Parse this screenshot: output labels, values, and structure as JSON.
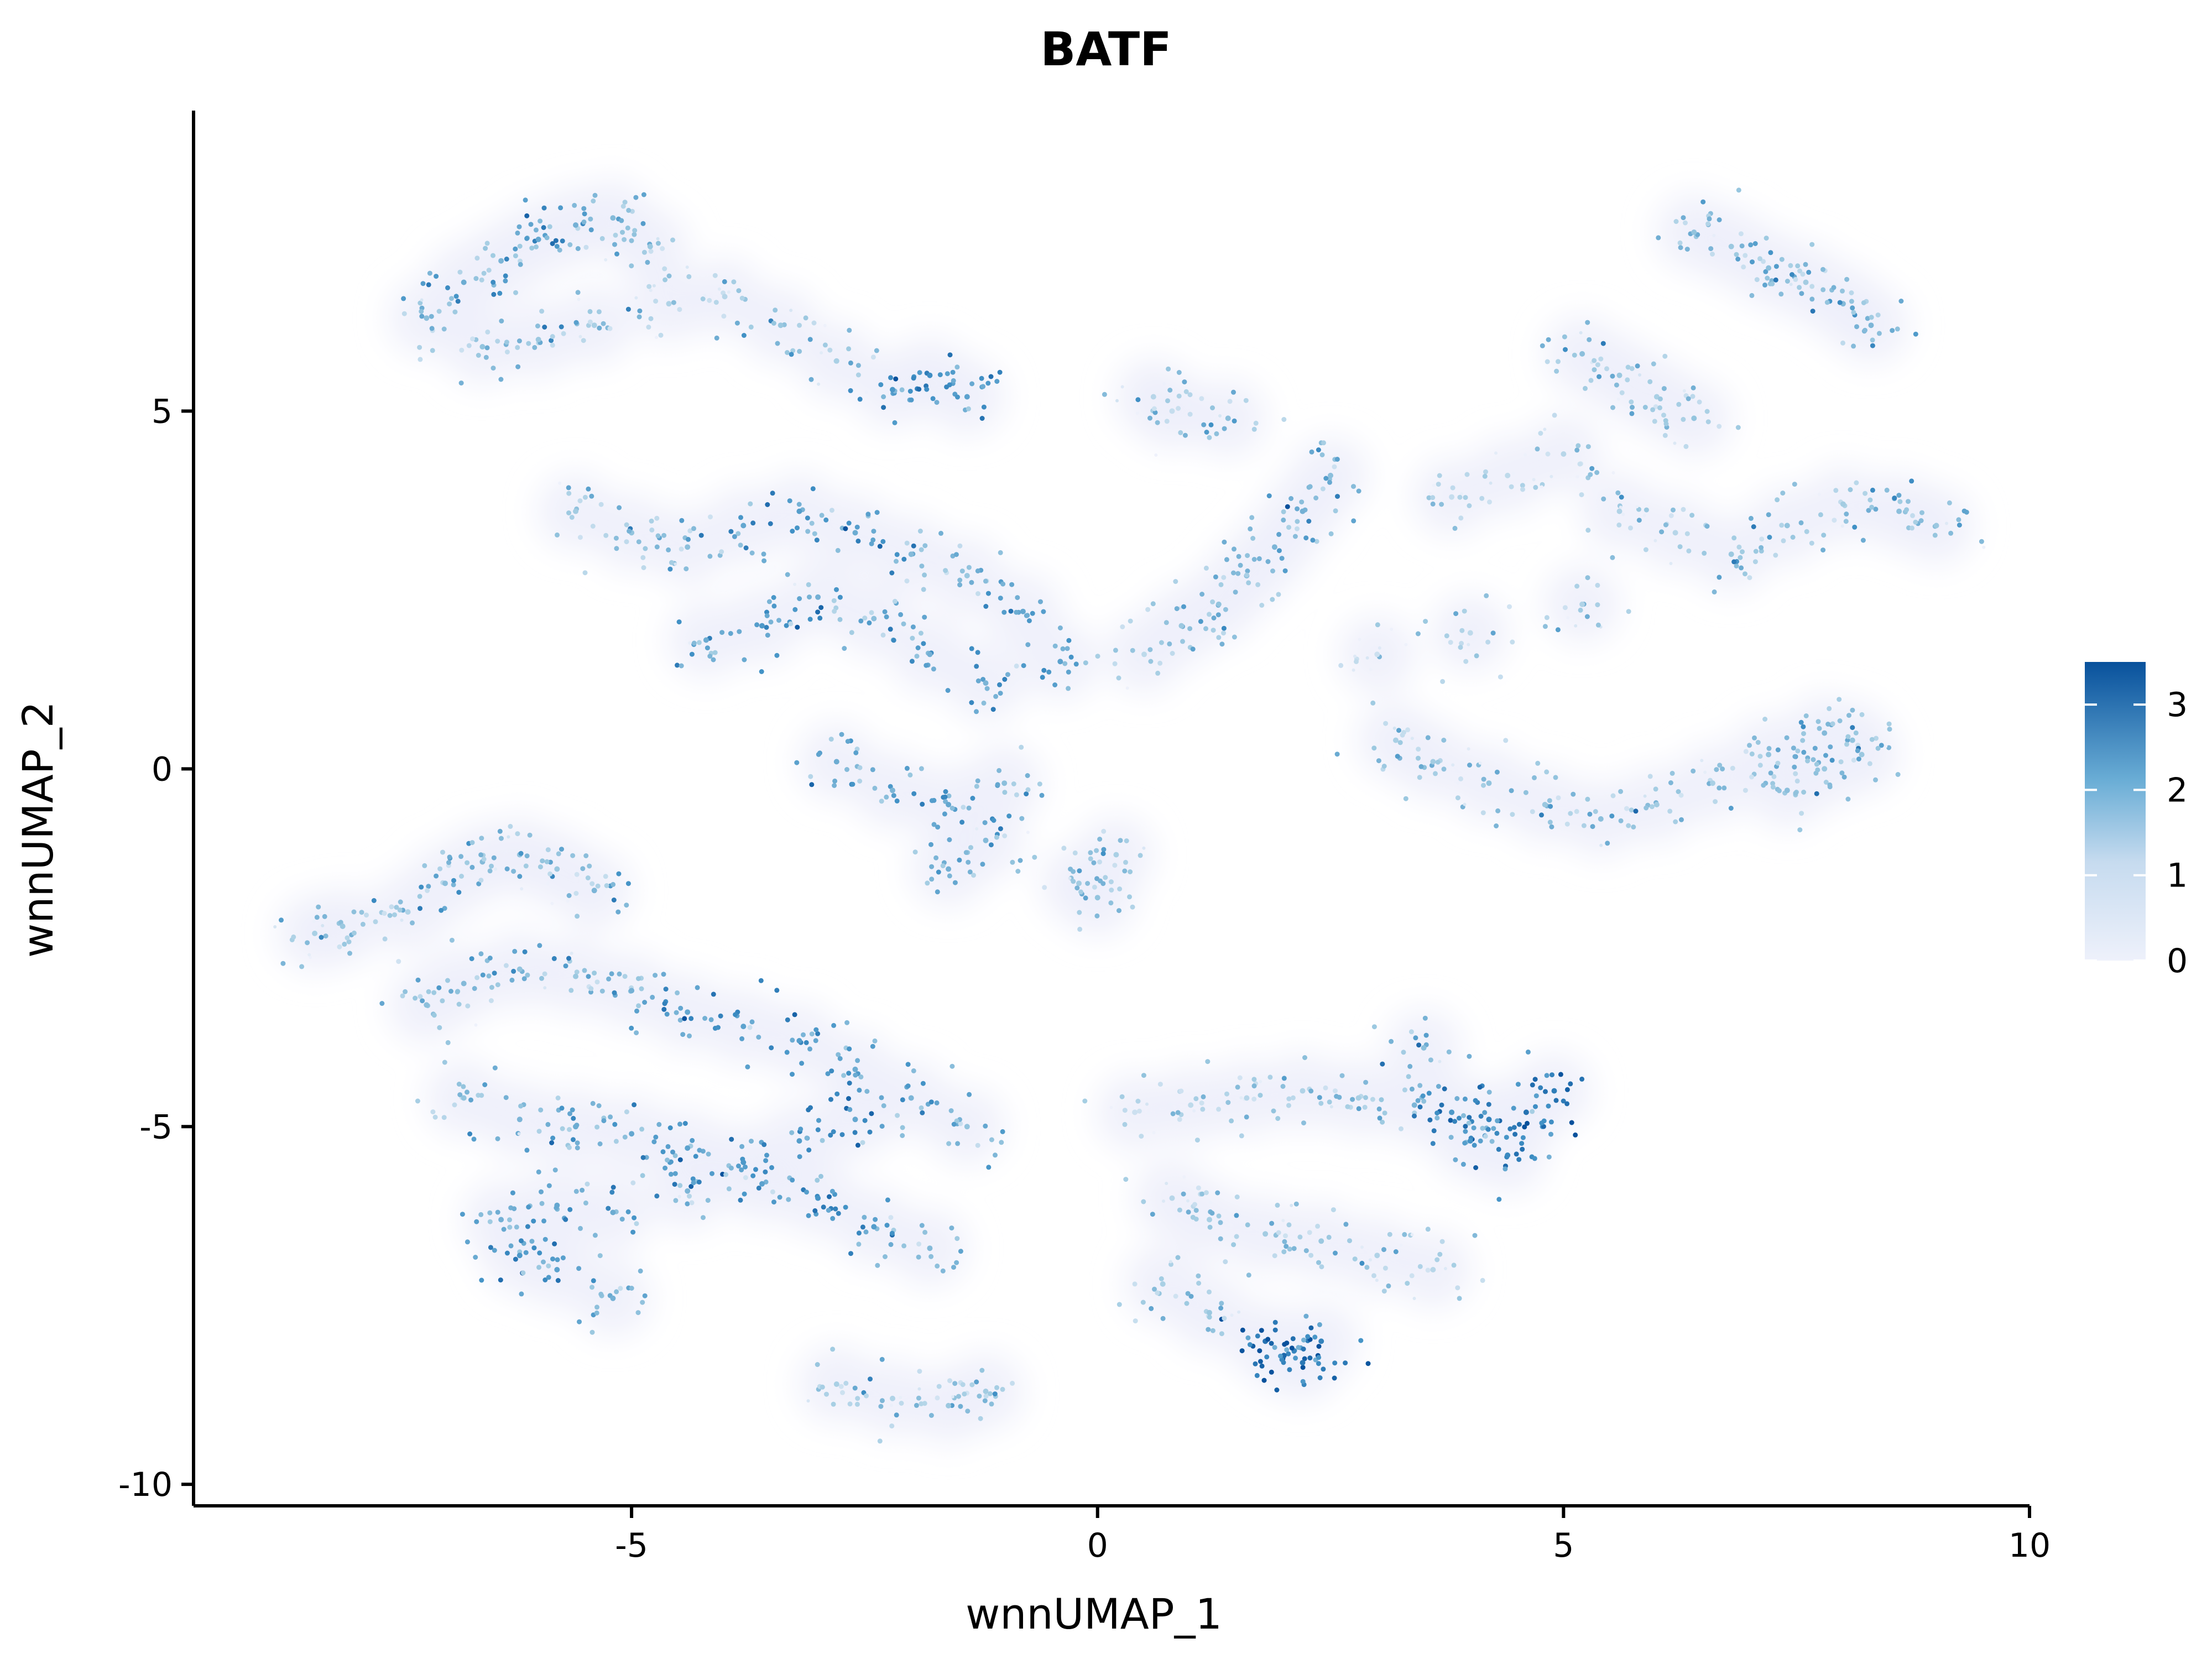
{
  "chart_data": {
    "type": "scatter",
    "title": "BATF",
    "xlabel": "wnnUMAP_1",
    "ylabel": "wnnUMAP_2",
    "xlim": [
      -9.7,
      10
    ],
    "ylim": [
      -10.3,
      9.2
    ],
    "xticks": [
      -5,
      0,
      5,
      10
    ],
    "xtick_labels": [
      "-5",
      "0",
      "5",
      "10"
    ],
    "yticks": [
      -10,
      -5,
      0,
      5
    ],
    "ytick_labels": [
      "-10",
      "-5",
      "0",
      "5"
    ],
    "legend": {
      "type": "colorbar",
      "placement": "right",
      "ticks": [
        0,
        1,
        2,
        3
      ],
      "tick_labels": [
        "0",
        "1",
        "2",
        "3"
      ],
      "min": 0,
      "max": 3.5,
      "colors": [
        "#eef1fb",
        "#9ecae1",
        "#4292c6",
        "#08519c"
      ]
    },
    "grid": false,
    "series": [
      {
        "cluster": "upper-left",
        "x": [
          -7.2,
          -6.8,
          -6.4,
          -6.0,
          -5.6,
          -5.2,
          -4.8,
          -6.6,
          -6.0,
          -5.4,
          -4.6,
          -4.0,
          -3.4,
          -2.8,
          -2.2,
          -1.8,
          -1.4,
          -5.6,
          -5.0,
          -4.4,
          -3.8,
          -3.2,
          -2.6,
          -2.0,
          -1.4,
          -0.8,
          -0.4,
          -4.2,
          -3.6,
          -3.0,
          -2.4,
          -1.8,
          -1.2,
          -2.8,
          -2.2,
          -1.6,
          -1.0,
          -1.6,
          -1.2
        ],
        "y": [
          6.3,
          6.8,
          7.1,
          7.4,
          7.6,
          7.7,
          7.3,
          5.9,
          6.0,
          6.2,
          6.5,
          6.6,
          6.2,
          5.7,
          5.3,
          5.5,
          5.2,
          3.6,
          3.3,
          3.1,
          3.4,
          3.6,
          3.3,
          3.0,
          2.7,
          2.2,
          1.5,
          1.8,
          2.0,
          2.4,
          2.1,
          1.6,
          1.2,
          0.1,
          -0.3,
          -0.5,
          -0.2,
          -1.4,
          -1.0
        ],
        "values": [
          1.4,
          1.8,
          1.6,
          1.9,
          1.7,
          1.5,
          1.2,
          1.3,
          1.2,
          1.0,
          0.9,
          0.8,
          1.2,
          1.0,
          2.2,
          2.4,
          2.0,
          1.1,
          1.3,
          1.4,
          1.9,
          2.1,
          1.8,
          1.5,
          1.2,
          1.9,
          2.0,
          1.8,
          2.2,
          1.7,
          1.4,
          1.7,
          1.6,
          1.8,
          1.6,
          1.9,
          1.4,
          1.7,
          1.5
        ]
      },
      {
        "cluster": "lower-left",
        "x": [
          -8.4,
          -8.1,
          -7.4,
          -7.0,
          -6.6,
          -6.2,
          -5.8,
          -5.4,
          -7.2,
          -6.8,
          -6.2,
          -5.6,
          -5.0,
          -4.4,
          -3.8,
          -3.2,
          -2.6,
          -6.8,
          -6.2,
          -5.6,
          -5.0,
          -4.4,
          -3.8,
          -3.2,
          -2.6,
          -2.0,
          -1.4,
          -6.4,
          -5.8,
          -5.2,
          -4.4,
          -3.6,
          -3.0,
          -2.4,
          -1.8,
          -6.2,
          -5.8,
          -5.2,
          -2.8,
          -2.2,
          -1.6,
          -1.2
        ],
        "y": [
          -2.3,
          -2.2,
          -2.0,
          -1.6,
          -1.3,
          -1.2,
          -1.4,
          -1.7,
          -3.3,
          -3.0,
          -2.8,
          -2.9,
          -3.1,
          -3.4,
          -3.6,
          -3.8,
          -4.2,
          -4.6,
          -4.9,
          -5.0,
          -5.1,
          -5.3,
          -5.5,
          -5.2,
          -4.9,
          -4.6,
          -5.0,
          -6.3,
          -6.1,
          -6.2,
          -5.9,
          -5.8,
          -6.0,
          -6.4,
          -6.7,
          -6.8,
          -7.0,
          -7.4,
          -8.6,
          -8.8,
          -8.9,
          -8.7
        ],
        "values": [
          1.0,
          1.2,
          0.9,
          1.4,
          1.5,
          1.3,
          1.2,
          1.6,
          1.4,
          1.5,
          1.3,
          1.2,
          1.7,
          1.9,
          2.0,
          2.1,
          1.8,
          1.3,
          1.6,
          1.8,
          1.9,
          2.0,
          2.2,
          2.1,
          1.9,
          1.6,
          1.3,
          1.7,
          1.9,
          1.8,
          1.6,
          2.0,
          2.3,
          2.1,
          1.5,
          2.2,
          2.0,
          1.7,
          1.0,
          0.9,
          1.2,
          1.1
        ]
      },
      {
        "cluster": "center-strand",
        "x": [
          0.6,
          0.8,
          1.4,
          1.6,
          1.9,
          2.2,
          2.5,
          1.3,
          0.9,
          0.2,
          -0.2,
          0.0,
          0.5
        ],
        "y": [
          5.2,
          5.0,
          4.9,
          2.7,
          3.1,
          3.6,
          4.1,
          2.3,
          2.0,
          -1.2,
          -1.6,
          -1.8,
          1.6
        ],
        "values": [
          0.8,
          0.6,
          1.4,
          1.5,
          1.6,
          1.7,
          1.4,
          1.3,
          1.2,
          1.0,
          1.1,
          1.3,
          0.7
        ]
      },
      {
        "cluster": "upper-right",
        "x": [
          6.4,
          6.8,
          7.2,
          7.6,
          8.0,
          8.3,
          5.2,
          5.6,
          6.0,
          6.4,
          3.8,
          4.4,
          5.0,
          5.6,
          6.2,
          6.8,
          7.4,
          8.0,
          8.6,
          9.0,
          3.2,
          3.6,
          4.2,
          4.8,
          5.4,
          6.0,
          6.6,
          7.2,
          7.8,
          8.2,
          7.4,
          7.8,
          8.1,
          3.0,
          4.0,
          5.2
        ],
        "y": [
          7.5,
          7.3,
          7.0,
          6.8,
          6.5,
          6.2,
          5.8,
          5.5,
          5.2,
          4.9,
          3.8,
          4.1,
          4.4,
          3.6,
          3.3,
          3.0,
          3.4,
          3.7,
          3.6,
          3.4,
          0.4,
          0.1,
          -0.2,
          -0.5,
          -0.7,
          -0.5,
          -0.2,
          0.2,
          0.5,
          0.2,
          -0.3,
          0.0,
          0.4,
          1.6,
          1.9,
          2.3
        ],
        "values": [
          1.3,
          1.2,
          1.4,
          1.1,
          1.5,
          1.6,
          1.4,
          1.2,
          1.0,
          1.3,
          0.6,
          0.7,
          0.8,
          0.9,
          0.8,
          1.2,
          1.3,
          1.1,
          1.4,
          1.2,
          1.0,
          1.1,
          1.3,
          1.2,
          1.4,
          1.1,
          1.0,
          1.3,
          1.5,
          1.2,
          1.4,
          1.2,
          1.3,
          0.5,
          0.7,
          0.9
        ]
      },
      {
        "cluster": "lower-right",
        "x": [
          0.4,
          1.0,
          1.6,
          2.2,
          2.8,
          3.4,
          3.8,
          4.2,
          4.6,
          4.9,
          4.4,
          4.0,
          3.5,
          0.8,
          1.2,
          1.8,
          2.4,
          3.0,
          3.6,
          1.8,
          2.0,
          2.2,
          2.4,
          1.2,
          0.7
        ],
        "y": [
          -4.8,
          -4.7,
          -4.6,
          -4.5,
          -4.6,
          -4.7,
          -4.8,
          -4.9,
          -4.8,
          -4.5,
          -5.4,
          -5.2,
          -3.9,
          -6.0,
          -6.3,
          -6.5,
          -6.6,
          -6.8,
          -7.0,
          -8.0,
          -8.2,
          -8.3,
          -8.0,
          -7.6,
          -7.2
        ],
        "values": [
          0.5,
          0.7,
          0.8,
          0.9,
          1.0,
          1.6,
          2.2,
          2.6,
          2.9,
          2.7,
          2.5,
          2.3,
          1.4,
          0.8,
          1.0,
          1.1,
          1.2,
          0.9,
          0.8,
          2.9,
          3.1,
          2.8,
          2.6,
          1.2,
          1.0
        ]
      }
    ]
  }
}
